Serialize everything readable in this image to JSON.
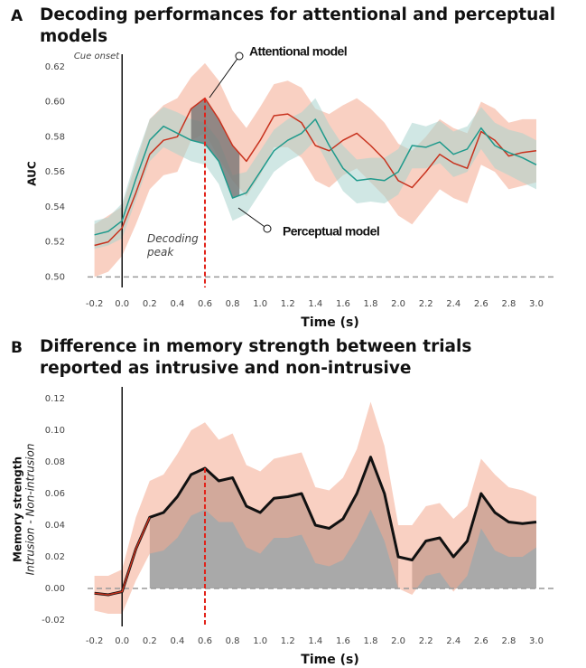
{
  "chart_data": [
    {
      "type": "line",
      "panel_label": "A",
      "title": "Decoding performances for attentional and perceptual models",
      "x_label": "Time (s)",
      "y_label": "AUC",
      "cue_label": "Cue onset",
      "peak_label": "Decoding peak",
      "x": [
        -0.2,
        -0.1,
        0,
        0.1,
        0.2,
        0.3,
        0.4,
        0.5,
        0.6,
        0.7,
        0.8,
        0.9,
        1.0,
        1.1,
        1.2,
        1.3,
        1.4,
        1.5,
        1.6,
        1.7,
        1.8,
        1.9,
        2.0,
        2.1,
        2.2,
        2.3,
        2.4,
        2.5,
        2.6,
        2.7,
        2.8,
        2.9,
        3.0
      ],
      "series": [
        {
          "name": "Attentional model",
          "color": "#c8321e",
          "band_color": "#f4a98f",
          "values": [
            0.518,
            0.52,
            0.528,
            0.548,
            0.57,
            0.578,
            0.58,
            0.596,
            0.602,
            0.59,
            0.575,
            0.566,
            0.578,
            0.592,
            0.593,
            0.588,
            0.575,
            0.572,
            0.578,
            0.582,
            0.575,
            0.567,
            0.555,
            0.551,
            0.56,
            0.57,
            0.565,
            0.562,
            0.583,
            0.578,
            0.569,
            0.571,
            0.572
          ],
          "upper": [
            0.53,
            0.535,
            0.54,
            0.565,
            0.59,
            0.598,
            0.602,
            0.614,
            0.622,
            0.612,
            0.595,
            0.585,
            0.597,
            0.61,
            0.612,
            0.608,
            0.596,
            0.593,
            0.598,
            0.602,
            0.596,
            0.588,
            0.576,
            0.572,
            0.58,
            0.59,
            0.585,
            0.582,
            0.6,
            0.596,
            0.588,
            0.59,
            0.59
          ],
          "lower": [
            0.5,
            0.503,
            0.512,
            0.53,
            0.55,
            0.558,
            0.56,
            0.578,
            0.582,
            0.568,
            0.555,
            0.546,
            0.558,
            0.574,
            0.574,
            0.568,
            0.555,
            0.551,
            0.558,
            0.562,
            0.554,
            0.546,
            0.535,
            0.53,
            0.54,
            0.55,
            0.545,
            0.542,
            0.564,
            0.56,
            0.55,
            0.552,
            0.554
          ]
        },
        {
          "name": "Perceptual model",
          "color": "#1f9a8c",
          "band_color": "#a9d3ce",
          "values": [
            0.524,
            0.526,
            0.532,
            0.556,
            0.578,
            0.586,
            0.582,
            0.578,
            0.576,
            0.566,
            0.545,
            0.548,
            0.56,
            0.572,
            0.578,
            0.582,
            0.59,
            0.575,
            0.562,
            0.555,
            0.556,
            0.555,
            0.56,
            0.575,
            0.574,
            0.577,
            0.57,
            0.573,
            0.585,
            0.575,
            0.571,
            0.568,
            0.564
          ],
          "upper": [
            0.532,
            0.534,
            0.542,
            0.568,
            0.59,
            0.597,
            0.594,
            0.59,
            0.588,
            0.578,
            0.558,
            0.56,
            0.572,
            0.584,
            0.59,
            0.594,
            0.602,
            0.587,
            0.575,
            0.567,
            0.568,
            0.568,
            0.573,
            0.588,
            0.586,
            0.589,
            0.583,
            0.586,
            0.597,
            0.588,
            0.584,
            0.582,
            0.578
          ],
          "lower": [
            0.516,
            0.518,
            0.522,
            0.544,
            0.566,
            0.574,
            0.57,
            0.566,
            0.564,
            0.553,
            0.532,
            0.536,
            0.548,
            0.56,
            0.566,
            0.57,
            0.578,
            0.563,
            0.549,
            0.542,
            0.543,
            0.542,
            0.547,
            0.562,
            0.562,
            0.565,
            0.557,
            0.56,
            0.573,
            0.562,
            0.558,
            0.554,
            0.55
          ]
        }
      ],
      "xlim": [
        -0.25,
        3.0
      ],
      "ylim": [
        0.494,
        0.624
      ],
      "xticks": [
        -0.2,
        {
          "value": 0,
          "label": "0.0"
        },
        0.2,
        0.4,
        0.6,
        0.8,
        {
          "value": 1,
          "label": "1.0"
        },
        1.2,
        1.4,
        1.6,
        1.8,
        {
          "value": 2,
          "label": "2.0"
        },
        2.2,
        2.4,
        2.6,
        2.8,
        {
          "value": 3,
          "label": "3.0"
        }
      ],
      "yticks": [
        {
          "value": 0.5,
          "label": "0.50"
        },
        0.52,
        0.54,
        0.56,
        0.58,
        {
          "value": 0.6,
          "label": "0.60"
        },
        0.62
      ],
      "hline": 0.5,
      "vline": 0,
      "peak_x": 0.6,
      "highlight_range": [
        0.5,
        0.85
      ]
    },
    {
      "type": "line",
      "panel_label": "B",
      "title": "Difference in memory strength between trials reported as intrusive and non-intrusive",
      "x_label": "Time (s)",
      "y_label": "Memory strength",
      "y_sublabel": "Intrusion - Non-intrusion",
      "x": [
        -0.2,
        -0.1,
        0,
        0.1,
        0.2,
        0.3,
        0.4,
        0.5,
        0.6,
        0.7,
        0.8,
        0.9,
        1.0,
        1.1,
        1.2,
        1.3,
        1.4,
        1.5,
        1.6,
        1.7,
        1.8,
        1.9,
        2.0,
        2.1,
        2.2,
        2.3,
        2.4,
        2.5,
        2.6,
        2.7,
        2.8,
        2.9,
        3.0
      ],
      "series": [
        {
          "color": "#111111",
          "lead_color": "#c8321e",
          "band_color": "#f4a98f",
          "values": [
            -0.003,
            -0.004,
            -0.002,
            0.025,
            0.045,
            0.048,
            0.058,
            0.072,
            0.076,
            0.068,
            0.07,
            0.052,
            0.048,
            0.057,
            0.058,
            0.06,
            0.04,
            0.038,
            0.044,
            0.06,
            0.083,
            0.06,
            0.02,
            0.018,
            0.03,
            0.032,
            0.02,
            0.03,
            0.06,
            0.048,
            0.042,
            0.041,
            0.042
          ],
          "upper": [
            0.008,
            0.008,
            0.012,
            0.045,
            0.068,
            0.072,
            0.085,
            0.1,
            0.105,
            0.094,
            0.098,
            0.078,
            0.074,
            0.082,
            0.084,
            0.086,
            0.064,
            0.062,
            0.07,
            0.088,
            0.118,
            0.09,
            0.04,
            0.04,
            0.052,
            0.054,
            0.044,
            0.052,
            0.082,
            0.072,
            0.064,
            0.062,
            0.058
          ],
          "lower": [
            -0.014,
            -0.016,
            -0.016,
            0.005,
            0.022,
            0.024,
            0.032,
            0.046,
            0.05,
            0.042,
            0.042,
            0.026,
            0.022,
            0.032,
            0.032,
            0.034,
            0.016,
            0.014,
            0.018,
            0.032,
            0.05,
            0.03,
            0.0,
            -0.004,
            0.008,
            0.01,
            -0.002,
            0.008,
            0.038,
            0.024,
            0.02,
            0.02,
            0.026
          ]
        }
      ],
      "xlim": [
        -0.25,
        3.0
      ],
      "ylim": [
        -0.024,
        0.124
      ],
      "xticks": [
        -0.2,
        {
          "value": 0,
          "label": "0.0"
        },
        0.2,
        0.4,
        0.6,
        0.8,
        {
          "value": 1,
          "label": "1.0"
        },
        1.2,
        1.4,
        1.6,
        1.8,
        {
          "value": 2,
          "label": "2.0"
        },
        2.2,
        2.4,
        2.6,
        2.8,
        {
          "value": 3,
          "label": "3.0"
        }
      ],
      "yticks": [
        -0.02,
        {
          "value": 0,
          "label": "0.00"
        },
        0.02,
        0.04,
        0.06,
        0.08,
        {
          "value": 0.1,
          "label": "0.10"
        },
        0.12
      ],
      "hline": 0,
      "vline": 0,
      "peak_x": 0.6,
      "significant_ranges": [
        [
          0.2,
          2.0
        ],
        [
          2.1,
          3.0
        ]
      ]
    }
  ]
}
